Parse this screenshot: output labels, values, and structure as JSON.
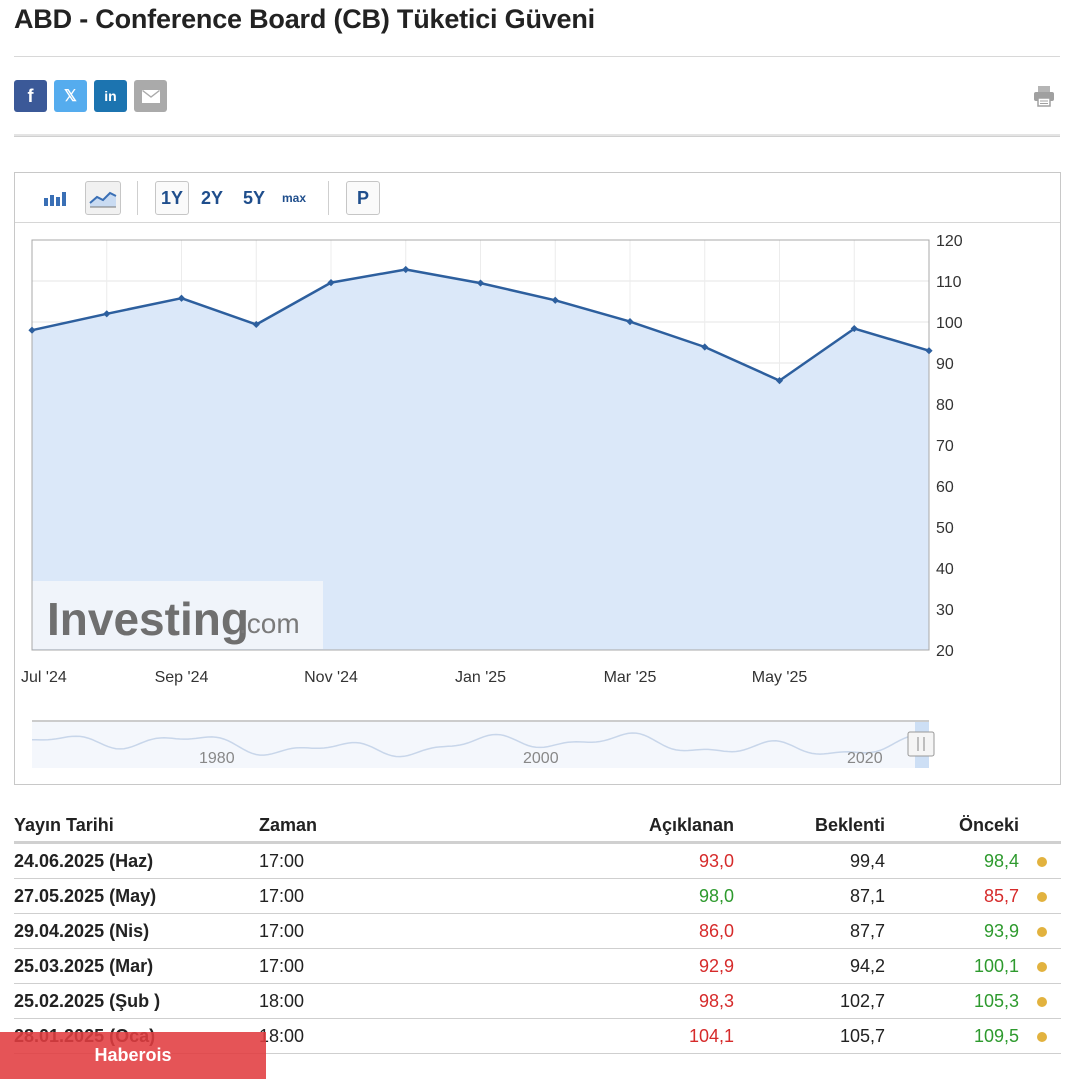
{
  "title": "ABD - Conference Board (CB) Tüketici Güveni",
  "share": {
    "facebook_glyph": "f",
    "twitter_glyph": "𝕏",
    "linkedin_glyph": "in",
    "icons": [
      "facebook-icon",
      "twitter-x-icon",
      "linkedin-icon",
      "mail-icon",
      "print-icon"
    ]
  },
  "toolbar": {
    "range_1y": "1Y",
    "range_2y": "2Y",
    "range_5y": "5Y",
    "range_max": "max",
    "p_label": "P"
  },
  "watermark": {
    "brand": "Investing",
    "suffix": ".com"
  },
  "chart_data": {
    "type": "area",
    "ylim": [
      20,
      120
    ],
    "y_ticks": [
      120,
      110,
      100,
      90,
      80,
      70,
      60,
      50,
      40,
      30,
      20
    ],
    "x_tick_labels": [
      "Jul '24",
      "Sep '24",
      "Nov '24",
      "Jan '25",
      "Mar '25",
      "May '25"
    ],
    "x": [
      "Jul '24",
      "Aug '24",
      "Sep '24",
      "Oct '24",
      "Nov '24",
      "Dec '24",
      "Jan '25",
      "Feb '25",
      "Mar '25",
      "Apr '25",
      "May '25",
      "Jun '25",
      "Jul '25"
    ],
    "series": [
      {
        "values": [
          98.0,
          102.0,
          105.8,
          99.4,
          109.6,
          112.8,
          109.5,
          105.3,
          100.1,
          93.9,
          85.7,
          98.4,
          93.0
        ]
      }
    ],
    "grid": true,
    "colors": {
      "line": "#2d5f9e",
      "fill": "#dbe8f9"
    },
    "navigator_labels": [
      "1980",
      "2000",
      "2020"
    ]
  },
  "table": {
    "headers": {
      "date": "Yayın Tarihi",
      "time": "Zaman",
      "actual": "Açıklanan",
      "forecast": "Beklenti",
      "previous": "Önceki"
    },
    "rows": [
      {
        "date": "24.06.2025 (Haz)",
        "time": "17:00",
        "actual": "93,0",
        "actual_color": "#d62b2b",
        "forecast": "99,4",
        "previous": "98,4",
        "previous_color": "#2e9a2e"
      },
      {
        "date": "27.05.2025 (May)",
        "time": "17:00",
        "actual": "98,0",
        "actual_color": "#2e9a2e",
        "forecast": "87,1",
        "previous": "85,7",
        "previous_color": "#d62b2b"
      },
      {
        "date": "29.04.2025 (Nis)",
        "time": "17:00",
        "actual": "86,0",
        "actual_color": "#d62b2b",
        "forecast": "87,7",
        "previous": "93,9",
        "previous_color": "#2e9a2e"
      },
      {
        "date": "25.03.2025 (Mar)",
        "time": "17:00",
        "actual": "92,9",
        "actual_color": "#d62b2b",
        "forecast": "94,2",
        "previous": "100,1",
        "previous_color": "#2e9a2e"
      },
      {
        "date": "25.02.2025 (Şub )",
        "time": "18:00",
        "actual": "98,3",
        "actual_color": "#d62b2b",
        "forecast": "102,7",
        "previous": "105,3",
        "previous_color": "#2e9a2e"
      },
      {
        "date": "28.01.2025 (Oca)",
        "time": "18:00",
        "actual": "104,1",
        "actual_color": "#d62b2b",
        "forecast": "105,7",
        "previous": "109,5",
        "previous_color": "#2e9a2e"
      }
    ]
  },
  "badge": {
    "label": "Haberois"
  }
}
